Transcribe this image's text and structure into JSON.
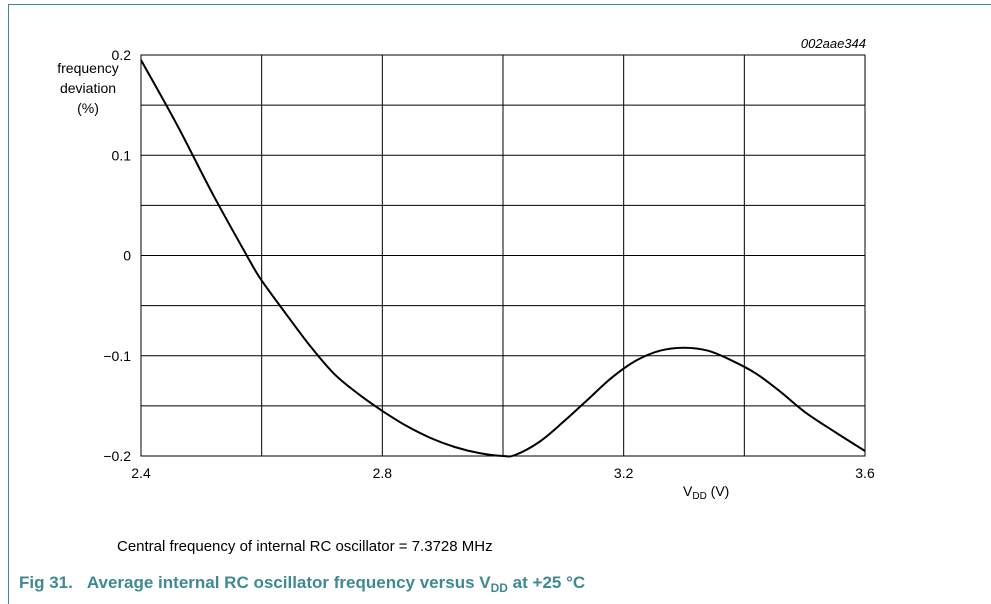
{
  "figure": {
    "id_code": "002aae344",
    "note": "Central frequency of internal RC oscillator = 7.3728 MHz",
    "caption_number": "Fig 31.",
    "caption_pre": "Average internal RC oscillator frequency versus V",
    "caption_sub": "DD",
    "caption_post": " at +25 °C"
  },
  "colors": {
    "caption": "#3e8a92",
    "curve": "#000000",
    "grid": "#000000"
  },
  "chart_data": {
    "type": "line",
    "title": "",
    "ylabel_lines": [
      "frequency",
      "deviation",
      "(%)"
    ],
    "xlabel_main": "V",
    "xlabel_sub": "DD",
    "xlabel_unit": " (V)",
    "xlim": [
      2.4,
      3.6
    ],
    "ylim": [
      -0.2,
      0.2
    ],
    "grid": true,
    "x_ticks": [
      2.4,
      2.8,
      3.2,
      3.6
    ],
    "x_tick_labels": [
      "2.4",
      "2.8",
      "3.2",
      "3.6"
    ],
    "x_grid": [
      2.4,
      2.6,
      2.8,
      3.0,
      3.2,
      3.4,
      3.6
    ],
    "y_ticks": [
      0.2,
      0.1,
      0,
      -0.1,
      -0.2
    ],
    "y_tick_labels": [
      "0.2",
      "0.1",
      "0",
      "−0.1",
      "−0.2"
    ],
    "y_grid": [
      0.2,
      0.15,
      0.1,
      0.05,
      0,
      -0.05,
      -0.1,
      -0.15,
      -0.2
    ],
    "series": [
      {
        "x": [
          2.4,
          2.46,
          2.52,
          2.58,
          2.6,
          2.64,
          2.68,
          2.72,
          2.76,
          2.8,
          2.84,
          2.88,
          2.92,
          2.96,
          3.0,
          3.02,
          3.06,
          3.1,
          3.14,
          3.18,
          3.22,
          3.26,
          3.3,
          3.34,
          3.38,
          3.42,
          3.46,
          3.5,
          3.55,
          3.6
        ],
        "y": [
          0.195,
          0.13,
          0.06,
          -0.005,
          -0.025,
          -0.058,
          -0.09,
          -0.118,
          -0.138,
          -0.155,
          -0.17,
          -0.182,
          -0.191,
          -0.197,
          -0.2,
          -0.199,
          -0.186,
          -0.166,
          -0.144,
          -0.122,
          -0.105,
          -0.095,
          -0.092,
          -0.095,
          -0.105,
          -0.118,
          -0.136,
          -0.156,
          -0.176,
          -0.195
        ]
      }
    ]
  }
}
